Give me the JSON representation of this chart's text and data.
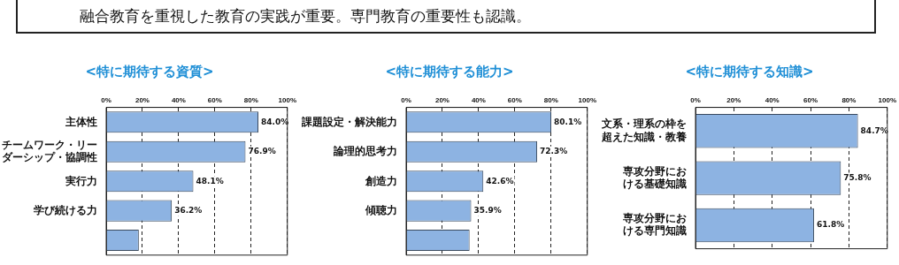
{
  "chart_data": [
    {
      "type": "bar",
      "orientation": "horizontal",
      "title": "<特に期待する資質>",
      "annotations": [
        "融合教育を重視した教育の実践が重要。専門教育の重要性も認識。"
      ],
      "categories": [
        "主体性",
        "チームワーク・リーダーシップ・協調性",
        "実行力",
        "学び続ける力",
        null
      ],
      "values": [
        84.0,
        76.9,
        48.1,
        36.2,
        18
      ],
      "value_labels": [
        "84.0%",
        "76.9%",
        "48.1%",
        "36.2%",
        null
      ],
      "color": "#8db3e2",
      "xlim": [
        0,
        100
      ],
      "xticks": [
        {
          "value": 0,
          "label": "0%"
        },
        {
          "value": 20,
          "label": "20%"
        },
        {
          "value": 40,
          "label": "40%"
        },
        {
          "value": 60,
          "label": "60%"
        },
        {
          "value": 80,
          "label": "80%"
        },
        {
          "value": 100,
          "label": "100%"
        }
      ],
      "grid": "x"
    },
    {
      "type": "bar",
      "orientation": "horizontal",
      "title": "<特に期待する能力>",
      "categories": [
        "課題設定・解決能力",
        "論理的思考力",
        "創造力",
        "傾聴力",
        null
      ],
      "values": [
        80.1,
        72.3,
        42.6,
        35.9,
        35
      ],
      "value_labels": [
        "80.1%",
        "72.3%",
        "42.6%",
        "35.9%",
        null
      ],
      "color": "#8db3e2",
      "xlim": [
        0,
        100
      ],
      "xticks": [
        {
          "value": 0,
          "label": "0%"
        },
        {
          "value": 20,
          "label": "20%"
        },
        {
          "value": 40,
          "label": "40%"
        },
        {
          "value": 60,
          "label": "60%"
        },
        {
          "value": 80,
          "label": "80%"
        },
        {
          "value": 100,
          "label": "100%"
        }
      ],
      "grid": "x"
    },
    {
      "type": "bar",
      "orientation": "horizontal",
      "title": "<特に期待する知識>",
      "categories": [
        "文系・理系の枠を超えた知識・教養",
        "専攻分野における基礎知識",
        "専攻分野における専門知識"
      ],
      "values": [
        84.7,
        75.8,
        61.8
      ],
      "value_labels": [
        "84.7%",
        "75.8%",
        "61.8%"
      ],
      "color": "#8db3e2",
      "xlim": [
        0,
        100
      ],
      "xticks": [
        {
          "value": 0,
          "label": "0%"
        },
        {
          "value": 20,
          "label": "20%"
        },
        {
          "value": 40,
          "label": "40%"
        },
        {
          "value": 60,
          "label": "60%"
        },
        {
          "value": 80,
          "label": "80%"
        },
        {
          "value": 100,
          "label": "100%"
        }
      ],
      "grid": "x"
    }
  ]
}
